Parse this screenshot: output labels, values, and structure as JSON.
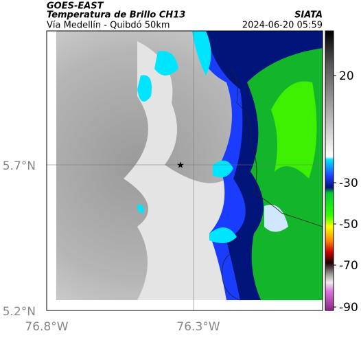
{
  "header": {
    "source": "GOES-EAST",
    "title": "Temperatura de Brillo CH13",
    "region": "Vía Medellín - Quibdó 50km",
    "agency": "SIATA",
    "datetime": "2024-06-20 05:59"
  },
  "map": {
    "lat_labels": [
      "5.7°N",
      "5.2°N"
    ],
    "lon_labels": [
      "76.8°W",
      "76.3°W"
    ]
  },
  "colorbar": {
    "ticks": [
      20,
      -30,
      -50,
      -70,
      -90
    ]
  }
}
